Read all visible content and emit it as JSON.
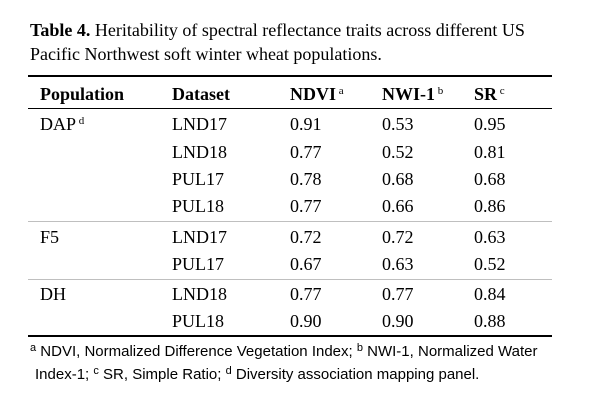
{
  "caption": {
    "label": "Table 4.",
    "text": "Heritability of spectral reflectance traits across different US Pacific Northwest soft winter wheat populations."
  },
  "headers": {
    "population": "Population",
    "dataset": "Dataset",
    "ndvi": "NDVI",
    "ndvi_sup": "a",
    "nwi": "NWI-1",
    "nwi_sup": "b",
    "sr": "SR",
    "sr_sup": "c"
  },
  "groups": [
    {
      "population": "DAP",
      "population_sup": "d",
      "rows": [
        {
          "dataset": "LND17",
          "ndvi": "0.91",
          "nwi": "0.53",
          "sr": "0.95"
        },
        {
          "dataset": "LND18",
          "ndvi": "0.77",
          "nwi": "0.52",
          "sr": "0.81"
        },
        {
          "dataset": "PUL17",
          "ndvi": "0.78",
          "nwi": "0.68",
          "sr": "0.68"
        },
        {
          "dataset": "PUL18",
          "ndvi": "0.77",
          "nwi": "0.66",
          "sr": "0.86"
        }
      ]
    },
    {
      "population": "F5",
      "population_sup": "",
      "rows": [
        {
          "dataset": "LND17",
          "ndvi": "0.72",
          "nwi": "0.72",
          "sr": "0.63"
        },
        {
          "dataset": "PUL17",
          "ndvi": "0.67",
          "nwi": "0.63",
          "sr": "0.52"
        }
      ]
    },
    {
      "population": "DH",
      "population_sup": "",
      "rows": [
        {
          "dataset": "LND18",
          "ndvi": "0.77",
          "nwi": "0.77",
          "sr": "0.84"
        },
        {
          "dataset": "PUL18",
          "ndvi": "0.90",
          "nwi": "0.90",
          "sr": "0.88"
        }
      ]
    }
  ],
  "footnote": {
    "a_sup": "a",
    "a_text": " NDVI, Normalized Difference Vegetation Index; ",
    "b_sup": "b",
    "b_text": " NWI-1, Normalized Water",
    "b_text2": "Index-1; ",
    "c_sup": "c",
    "c_text": " SR, Simple Ratio; ",
    "d_sup": "d",
    "d_text": " Diversity association mapping panel."
  }
}
